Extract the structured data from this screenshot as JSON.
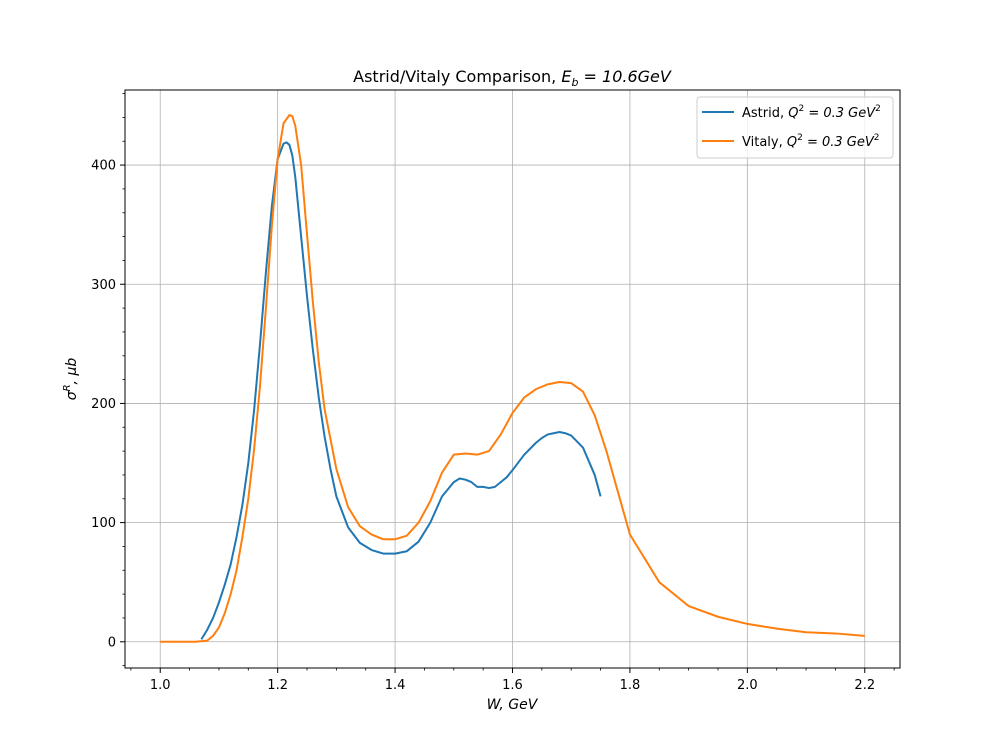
{
  "chart_data": {
    "type": "line",
    "title": "Astrid/Vitaly Comparison, ",
    "title_math": {
      "base": "E",
      "sub": "b",
      "rest": " = 10.6GeV"
    },
    "xlabel": "W, GeV",
    "ylabel_main": "σ",
    "ylabel_sup": "R",
    "ylabel_rest": ", μb",
    "xlim": [
      0.94,
      2.26
    ],
    "ylim": [
      -22,
      463
    ],
    "xticks": [
      1.0,
      1.2,
      1.4,
      1.6,
      1.8,
      2.0,
      2.2
    ],
    "xtick_labels": [
      "1.0",
      "1.2",
      "1.4",
      "1.6",
      "1.8",
      "2.0",
      "2.2"
    ],
    "yticks": [
      0,
      100,
      200,
      300,
      400
    ],
    "ytick_labels": [
      "0",
      "100",
      "200",
      "300",
      "400"
    ],
    "grid": true,
    "legend_position": "top-right",
    "series": [
      {
        "name": "Astrid, ",
        "name_math": {
          "base": "Q",
          "sup": "2",
          "rest": " = 0.3 GeV",
          "sup2": "2"
        },
        "color": "#1f77b4",
        "x": [
          1.07,
          1.08,
          1.09,
          1.1,
          1.11,
          1.12,
          1.13,
          1.14,
          1.15,
          1.16,
          1.17,
          1.18,
          1.19,
          1.2,
          1.21,
          1.215,
          1.22,
          1.225,
          1.23,
          1.24,
          1.25,
          1.26,
          1.27,
          1.28,
          1.29,
          1.3,
          1.32,
          1.34,
          1.36,
          1.38,
          1.4,
          1.42,
          1.44,
          1.46,
          1.48,
          1.5,
          1.51,
          1.52,
          1.53,
          1.54,
          1.55,
          1.56,
          1.57,
          1.58,
          1.59,
          1.6,
          1.62,
          1.64,
          1.65,
          1.66,
          1.67,
          1.68,
          1.69,
          1.7,
          1.72,
          1.74,
          1.75
        ],
        "y": [
          2,
          10,
          20,
          33,
          48,
          65,
          88,
          115,
          150,
          195,
          250,
          310,
          365,
          405,
          418,
          419,
          417,
          408,
          390,
          340,
          290,
          245,
          205,
          172,
          145,
          122,
          96,
          83,
          77,
          74,
          74,
          76,
          84,
          100,
          122,
          134,
          137,
          136,
          134,
          130,
          130,
          129,
          130,
          134,
          138,
          144,
          157,
          167,
          171,
          174,
          175,
          176,
          175,
          173,
          163,
          140,
          122
        ]
      },
      {
        "name": "Vitaly, ",
        "name_math": {
          "base": "Q",
          "sup": "2",
          "rest": " = 0.3 GeV",
          "sup2": "2"
        },
        "color": "#ff7f0e",
        "x": [
          1.0,
          1.02,
          1.04,
          1.06,
          1.08,
          1.09,
          1.1,
          1.11,
          1.12,
          1.13,
          1.14,
          1.15,
          1.16,
          1.17,
          1.18,
          1.19,
          1.2,
          1.21,
          1.22,
          1.225,
          1.23,
          1.24,
          1.25,
          1.26,
          1.27,
          1.28,
          1.3,
          1.32,
          1.34,
          1.36,
          1.38,
          1.4,
          1.42,
          1.44,
          1.46,
          1.48,
          1.5,
          1.52,
          1.54,
          1.56,
          1.58,
          1.6,
          1.62,
          1.64,
          1.66,
          1.68,
          1.7,
          1.72,
          1.74,
          1.76,
          1.78,
          1.8,
          1.85,
          1.9,
          1.95,
          2.0,
          2.05,
          2.1,
          2.15,
          2.2
        ],
        "y": [
          0,
          0,
          0,
          0,
          1,
          5,
          12,
          24,
          40,
          60,
          88,
          120,
          162,
          215,
          280,
          348,
          405,
          435,
          442,
          441,
          433,
          400,
          342,
          285,
          235,
          195,
          145,
          113,
          97,
          90,
          86,
          86,
          89,
          100,
          118,
          142,
          157,
          158,
          157,
          160,
          174,
          192,
          205,
          212,
          216,
          218,
          217,
          210,
          190,
          160,
          125,
          90,
          50,
          30,
          21,
          15,
          11,
          8,
          7,
          5
        ]
      }
    ]
  }
}
